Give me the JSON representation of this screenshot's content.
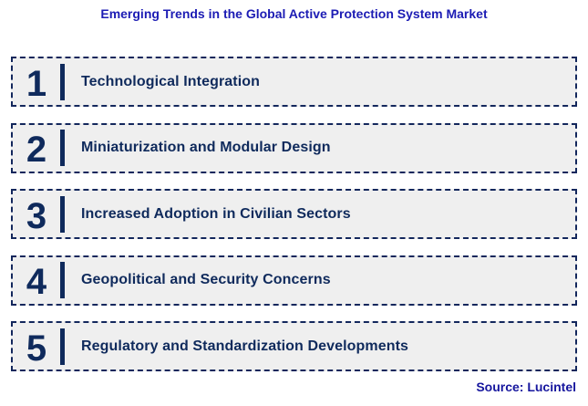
{
  "title": "Emerging Trends in the Global Active Protection System Market",
  "trends": [
    {
      "number": "1",
      "label": "Technological Integration"
    },
    {
      "number": "2",
      "label": "Miniaturization and Modular Design"
    },
    {
      "number": "3",
      "label": "Increased Adoption in Civilian Sectors"
    },
    {
      "number": "4",
      "label": "Geopolitical and Security Concerns"
    },
    {
      "number": "5",
      "label": "Regulatory and Standardization Developments"
    }
  ],
  "source": "Source: Lucintel",
  "colors": {
    "title_blue": "#1C1CB4",
    "source_blue": "#16169E",
    "navy": "#0F2A5C",
    "border_navy": "#13275C",
    "box_background": "#EFEFEF",
    "page_background": "#FFFFFF"
  }
}
